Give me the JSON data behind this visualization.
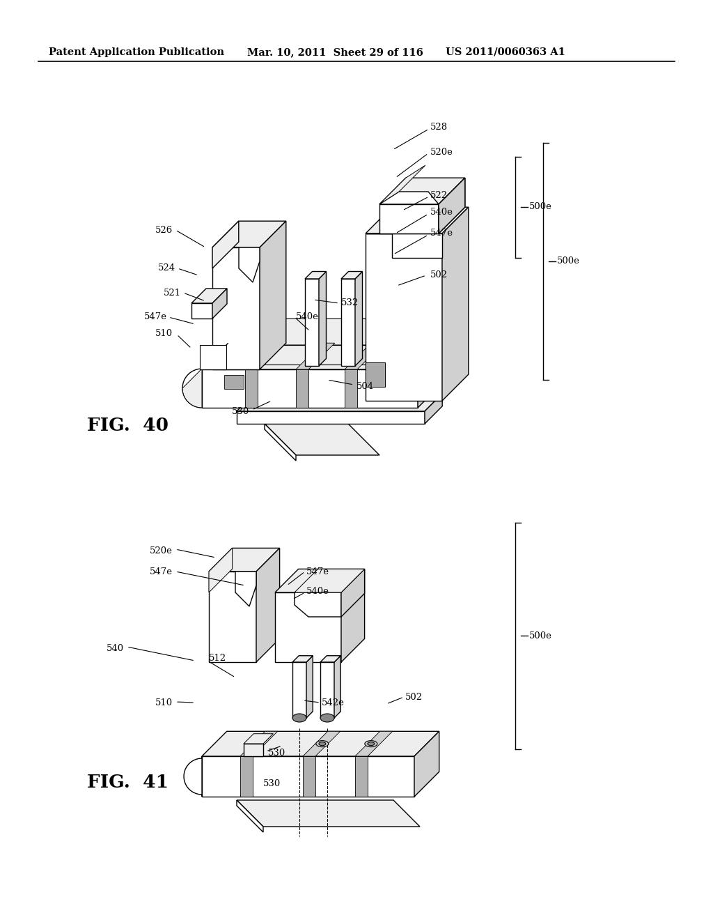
{
  "background_color": "#ffffff",
  "header_left": "Patent Application Publication",
  "header_mid": "Mar. 10, 2011  Sheet 29 of 116",
  "header_right": "US 2011/0060363 A1",
  "label_fontsize": 9.5,
  "fig_label_fontsize": 19,
  "fig40_label": "FIG.  40",
  "fig41_label": "FIG.  41"
}
